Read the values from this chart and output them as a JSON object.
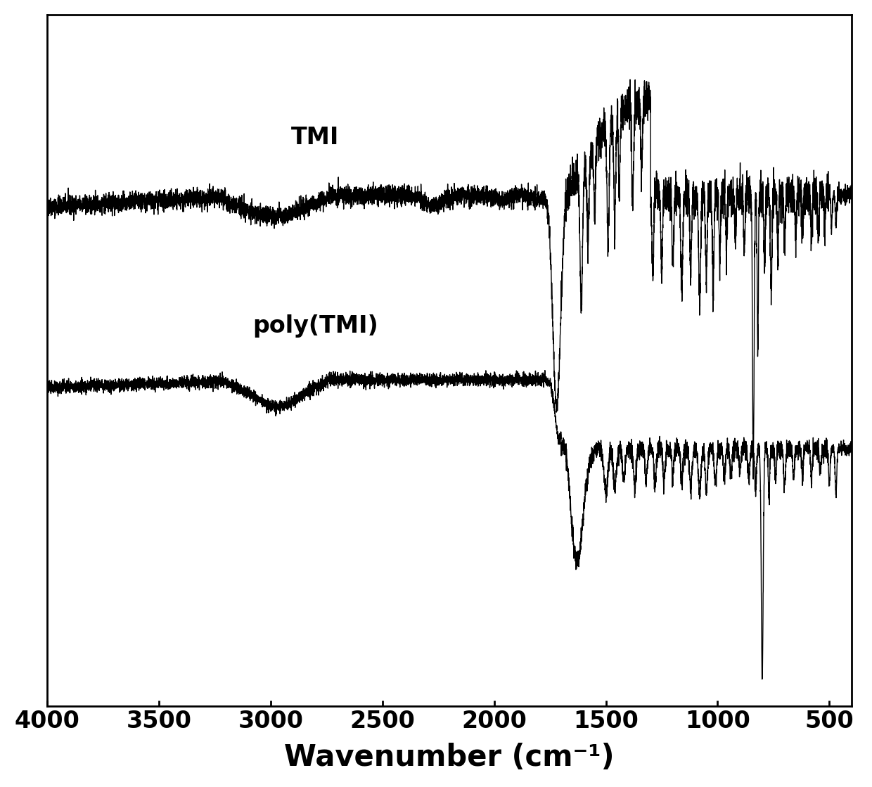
{
  "title": "",
  "xlabel": "Wavenumber (cm⁻¹)",
  "ylabel": "",
  "xlim": [
    4000,
    400
  ],
  "background_color": "#ffffff",
  "line_color": "#000000",
  "label_tmi": "TMI",
  "label_polytmi": "poly(TMI)",
  "xticks": [
    4000,
    3500,
    3000,
    2500,
    2000,
    1500,
    1000,
    500
  ],
  "xlabel_fontsize": 30,
  "tick_fontsize": 24,
  "label_fontsize": 24,
  "tmi_baseline": 0.78,
  "polytmi_baseline": 0.3
}
